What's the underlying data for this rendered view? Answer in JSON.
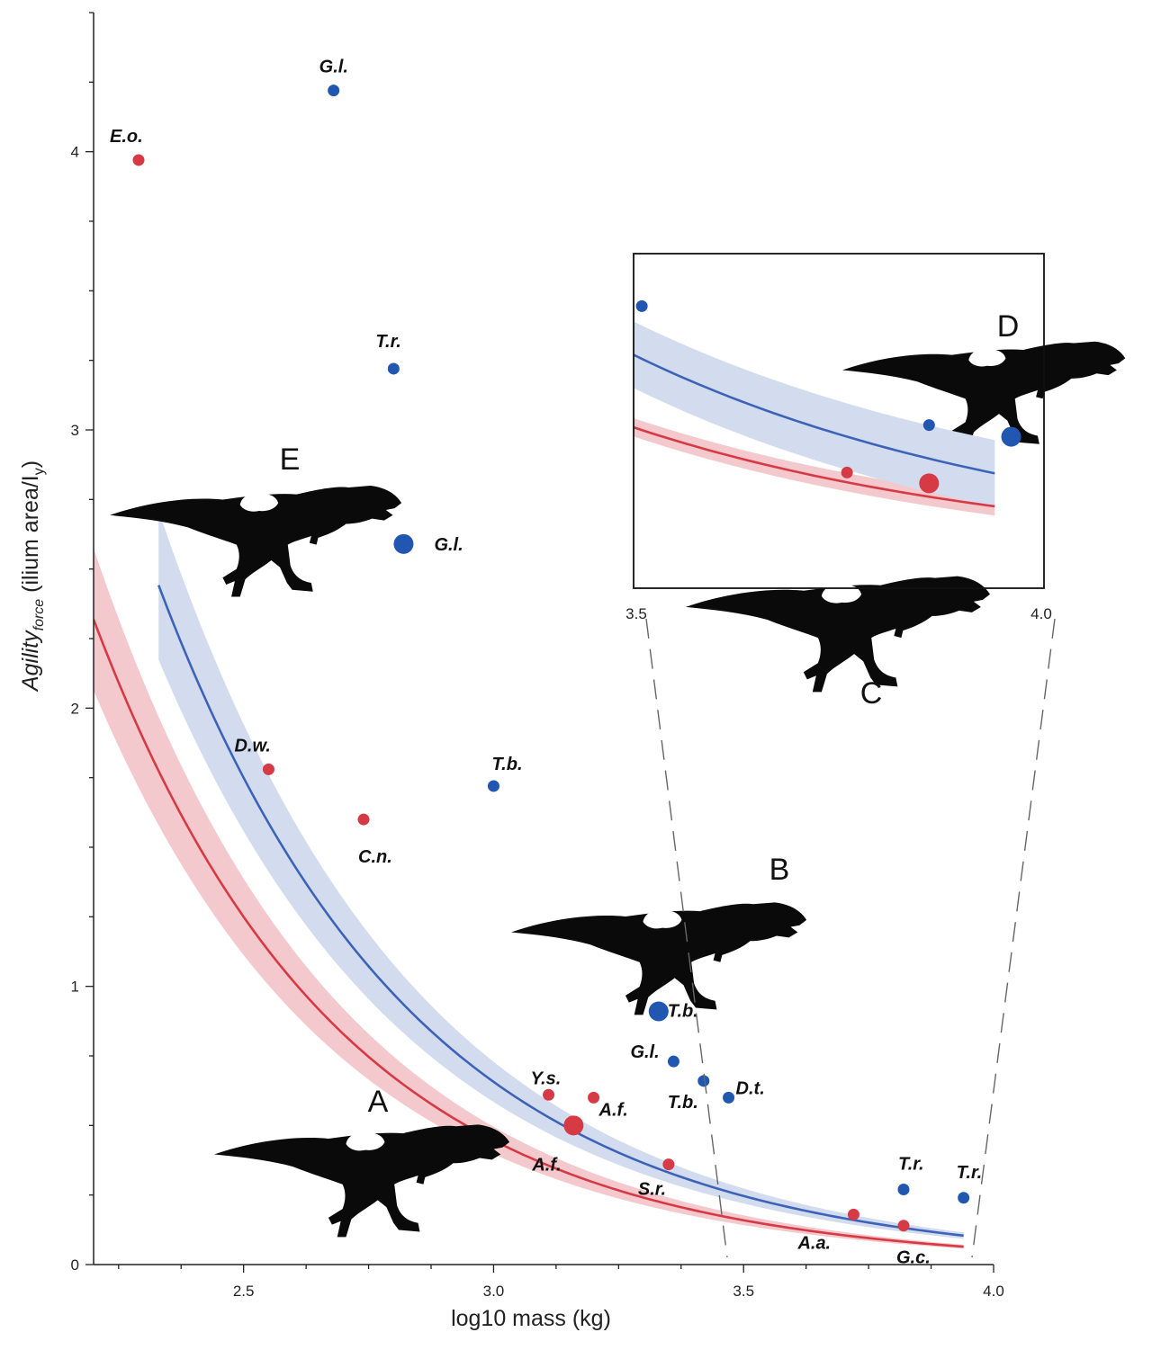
{
  "chart_data": {
    "type": "scatter",
    "xlabel": "log10 mass (kg)",
    "ylabel_main": "Agility",
    "ylabel_sub": "force",
    "ylabel_rest": " (ilium area/I",
    "ylabel_sub2": "y",
    "ylabel_end": ")",
    "xlim": [
      2.2,
      4.0
    ],
    "ylim": [
      0,
      4.5
    ],
    "x_ticks": [
      {
        "value": 2.5,
        "label": "2.5"
      },
      {
        "value": 3.0,
        "label": "3.0"
      },
      {
        "value": 3.5,
        "label": "3.5"
      },
      {
        "value": 4.0,
        "label": "4.0"
      }
    ],
    "y_ticks": [
      {
        "value": 0,
        "label": "0"
      },
      {
        "value": 1,
        "label": "1"
      },
      {
        "value": 2,
        "label": "2"
      },
      {
        "value": 3,
        "label": "3"
      },
      {
        "value": 4,
        "label": "4"
      }
    ],
    "curves": [
      {
        "color": "#d63a44",
        "band_color": "#f4c9ce",
        "a": 1.25,
        "b": 2.06,
        "x_from": 2.2,
        "x_to": 3.94
      },
      {
        "color": "#3d63b8",
        "band_color": "#d3dcee",
        "a": 1.75,
        "b": 1.96,
        "x_from": 2.33,
        "x_to": 3.94
      }
    ],
    "series": [
      {
        "color": "#d63a44",
        "points": [
          {
            "x": 2.29,
            "y": 3.97,
            "label": "E.o.",
            "big": false
          },
          {
            "x": 2.55,
            "y": 1.78,
            "label": "D.w.",
            "big": false
          },
          {
            "x": 2.74,
            "y": 1.6,
            "label": "C.n.",
            "big": false
          },
          {
            "x": 3.11,
            "y": 0.61,
            "label": "Y.s.",
            "big": false
          },
          {
            "x": 3.2,
            "y": 0.6,
            "label": "A.f.",
            "big": false
          },
          {
            "x": 3.16,
            "y": 0.5,
            "label": "A.f.",
            "big": true
          },
          {
            "x": 3.35,
            "y": 0.36,
            "label": "S.r.",
            "big": false
          },
          {
            "x": 3.72,
            "y": 0.18,
            "label": "A.a.",
            "big": false
          },
          {
            "x": 3.82,
            "y": 0.14,
            "label": "G.c.",
            "big": false
          }
        ]
      },
      {
        "color": "#2157b0",
        "points": [
          {
            "x": 2.68,
            "y": 4.22,
            "label": "G.l.",
            "big": false
          },
          {
            "x": 2.8,
            "y": 3.22,
            "label": "T.r.",
            "big": false
          },
          {
            "x": 2.82,
            "y": 2.59,
            "label": "G.l.",
            "big": true
          },
          {
            "x": 3.0,
            "y": 1.72,
            "label": "T.b.",
            "big": false
          },
          {
            "x": 3.33,
            "y": 0.91,
            "label": "T.b.",
            "big": true
          },
          {
            "x": 3.36,
            "y": 0.73,
            "label": "G.l.",
            "big": false
          },
          {
            "x": 3.42,
            "y": 0.66,
            "label": "T.b.",
            "big": false
          },
          {
            "x": 3.47,
            "y": 0.6,
            "label": "D.t.",
            "big": false
          },
          {
            "x": 3.82,
            "y": 0.27,
            "label": "T.r.",
            "big": false
          },
          {
            "x": 3.94,
            "y": 0.24,
            "label": "T.r.",
            "big": false
          }
        ]
      }
    ],
    "inset": {
      "xlim": [
        3.5,
        4.0
      ],
      "x_ticks": [
        {
          "value": 3.5,
          "label": "3.5"
        },
        {
          "value": 4.0,
          "label": "4.0"
        }
      ]
    },
    "silhouettes": [
      "A",
      "B",
      "C",
      "D",
      "E"
    ]
  }
}
